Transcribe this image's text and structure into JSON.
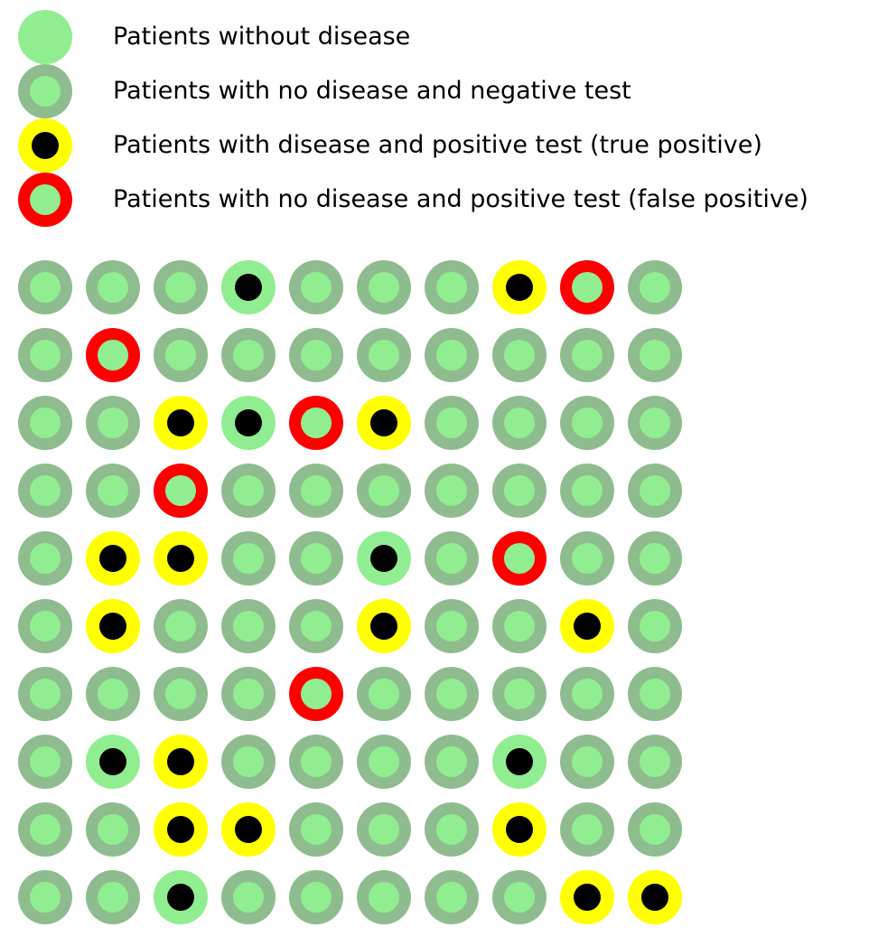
{
  "colors": {
    "no_disease": "#90ee90",
    "negative_ring": "#8fbc8f",
    "true_positive_ring": "#ffff00",
    "false_positive_ring": "#ff0000",
    "disease_core": "#000000"
  },
  "legend": [
    {
      "key": "no_disease",
      "label": "Patients without disease"
    },
    {
      "key": "true_negative",
      "label": "Patients with no disease and negative test"
    },
    {
      "key": "true_positive",
      "label": "Patients with disease and positive test (true positive)"
    },
    {
      "key": "false_positive",
      "label": "Patients with no disease and positive test (false positive)"
    }
  ],
  "grid": {
    "rows": [
      [
        "TN",
        "TN",
        "TN",
        "FN",
        "TN",
        "TN",
        "TN",
        "TP",
        "FP",
        "TN"
      ],
      [
        "TN",
        "FP",
        "TN",
        "TN",
        "TN",
        "TN",
        "TN",
        "TN",
        "TN",
        "TN"
      ],
      [
        "TN",
        "TN",
        "TP",
        "FN",
        "FP",
        "TP",
        "TN",
        "TN",
        "TN",
        "TN"
      ],
      [
        "TN",
        "TN",
        "FP",
        "TN",
        "TN",
        "TN",
        "TN",
        "TN",
        "TN",
        "TN"
      ],
      [
        "TN",
        "TP",
        "TP",
        "TN",
        "TN",
        "FN",
        "TN",
        "FP",
        "TN",
        "TN"
      ],
      [
        "TN",
        "TP",
        "TN",
        "TN",
        "TN",
        "TP",
        "TN",
        "TN",
        "TP",
        "TN"
      ],
      [
        "TN",
        "TN",
        "TN",
        "TN",
        "FP",
        "TN",
        "TN",
        "TN",
        "TN",
        "TN"
      ],
      [
        "TN",
        "FN",
        "TP",
        "TN",
        "TN",
        "TN",
        "TN",
        "FN",
        "TN",
        "TN"
      ],
      [
        "TN",
        "TN",
        "TP",
        "TP",
        "TN",
        "TN",
        "TN",
        "TP",
        "TN",
        "TN"
      ],
      [
        "TN",
        "TN",
        "FN",
        "TN",
        "TN",
        "TN",
        "TN",
        "TN",
        "TP",
        "TP"
      ]
    ]
  }
}
